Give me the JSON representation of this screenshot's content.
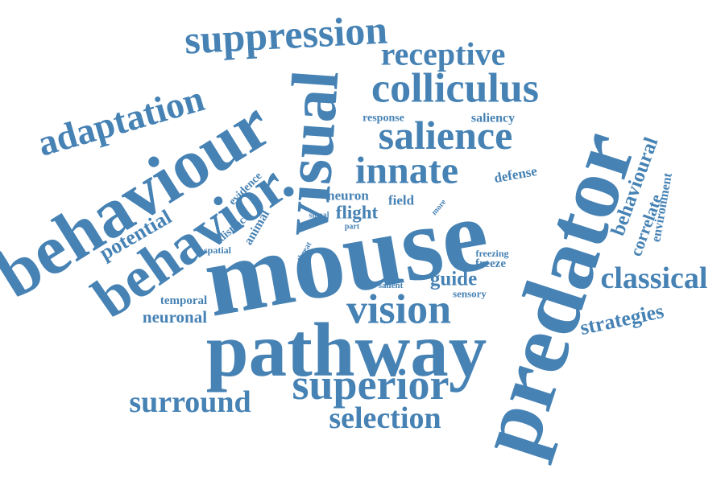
{
  "word_color": "#4682b4",
  "background_color": "#ffffff",
  "words": [
    "mouse",
    "predator",
    "pathway",
    "behaviour",
    "visual",
    "behavior",
    "superior",
    "vision",
    "innate",
    "salience",
    "colliculus",
    "suppression",
    "adaptation",
    "receptive",
    "classical",
    "surround",
    "selection",
    "strategies",
    "potential",
    "behavioural",
    "correlate",
    "environment",
    "neuronal",
    "temporal",
    "guide",
    "flight",
    "field",
    "neuron",
    "animal",
    "defense",
    "evidence",
    "distinct",
    "spatial",
    "response",
    "saliency",
    "freeze",
    "freezing",
    "sensory",
    "salient",
    "signal",
    "threat",
    "part",
    "more"
  ]
}
